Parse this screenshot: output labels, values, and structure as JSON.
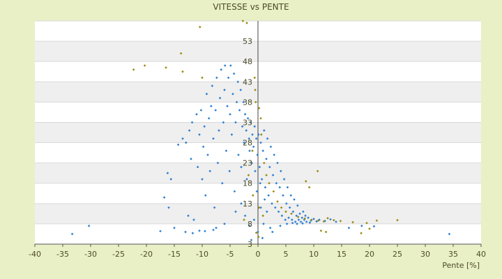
{
  "chart_data": {
    "type": "scatter",
    "title": "VITESSE vs PENTE",
    "xlabel": "Pente [%]",
    "ylabel": "",
    "xlim": [
      -40,
      40
    ],
    "ylim": [
      3,
      58
    ],
    "x_ticks": [
      -40,
      -35,
      -30,
      -25,
      -20,
      -15,
      -10,
      -5,
      0,
      5,
      10,
      15,
      20,
      25,
      30,
      35,
      40
    ],
    "y_ticks": [
      3,
      8,
      13,
      18,
      23,
      28,
      33,
      38,
      43,
      48,
      53
    ],
    "y_tick_labels_shown": [
      "3",
      "8",
      "13",
      "18",
      "23",
      "28",
      "33",
      "38",
      "43",
      "48",
      "53"
    ],
    "grid": "horizontal alternating bands",
    "legend": "none",
    "series": [
      {
        "color": "#2e7fd2",
        "marker": "diamond",
        "points": [
          [
            -33.3,
            5.5
          ],
          [
            -30.3,
            7.5
          ],
          [
            -17.5,
            6.2
          ],
          [
            -16.8,
            14.5
          ],
          [
            -16.2,
            20.5
          ],
          [
            -16,
            12
          ],
          [
            -15.6,
            19
          ],
          [
            -14.3,
            27.5
          ],
          [
            -13.5,
            29
          ],
          [
            -12.9,
            28
          ],
          [
            -12.5,
            10
          ],
          [
            -12.3,
            31
          ],
          [
            -12,
            24
          ],
          [
            -11.8,
            33
          ],
          [
            -11.5,
            9
          ],
          [
            -11,
            35
          ],
          [
            -10.8,
            22
          ],
          [
            -10.5,
            30
          ],
          [
            -10.2,
            36
          ],
          [
            -10,
            19
          ],
          [
            -9.8,
            27
          ],
          [
            -9.6,
            32
          ],
          [
            -9.4,
            15
          ],
          [
            -9.2,
            40
          ],
          [
            -9,
            25
          ],
          [
            -8.8,
            34
          ],
          [
            -8.6,
            21
          ],
          [
            -8.4,
            37
          ],
          [
            -8.2,
            42
          ],
          [
            -8,
            29
          ],
          [
            -7.8,
            12
          ],
          [
            -7.6,
            36
          ],
          [
            -7.4,
            44
          ],
          [
            -7.2,
            23
          ],
          [
            -7,
            31
          ],
          [
            -6.8,
            39
          ],
          [
            -6.6,
            46
          ],
          [
            -6.4,
            18
          ],
          [
            -6.2,
            33
          ],
          [
            -6,
            41
          ],
          [
            -5.9,
            47
          ],
          [
            -5.7,
            26
          ],
          [
            -5.5,
            37
          ],
          [
            -5.3,
            44
          ],
          [
            -5.1,
            21
          ],
          [
            -5,
            35
          ],
          [
            -4.9,
            47
          ],
          [
            -4.7,
            30
          ],
          [
            -4.5,
            40
          ],
          [
            -4.3,
            45
          ],
          [
            -4.2,
            16
          ],
          [
            -4,
            33
          ],
          [
            -3.8,
            38
          ],
          [
            -3.6,
            43
          ],
          [
            -3.5,
            25
          ],
          [
            -3.3,
            36
          ],
          [
            -3.1,
            41
          ],
          [
            -3,
            22
          ],
          [
            -2.8,
            32
          ],
          [
            -2.6,
            38
          ],
          [
            -2.5,
            28
          ],
          [
            -2.3,
            35
          ],
          [
            -2.1,
            31
          ],
          [
            -2,
            19
          ],
          [
            -1.8,
            34
          ],
          [
            -1.6,
            29
          ],
          [
            -1.5,
            26
          ],
          [
            -1.3,
            33
          ],
          [
            -1.1,
            23
          ],
          [
            -1,
            30
          ],
          [
            -0.8,
            27
          ],
          [
            -0.6,
            32
          ],
          [
            -0.5,
            21
          ],
          [
            -0.3,
            29
          ],
          [
            -0.1,
            25
          ],
          [
            0.1,
            30
          ],
          [
            0.3,
            22
          ],
          [
            0.5,
            28
          ],
          [
            0.7,
            19
          ],
          [
            0.9,
            26
          ],
          [
            1.1,
            31
          ],
          [
            1.3,
            17
          ],
          [
            1.5,
            24
          ],
          [
            1.7,
            29
          ],
          [
            1.9,
            15
          ],
          [
            2.1,
            22
          ],
          [
            2.3,
            27
          ],
          [
            2.5,
            13
          ],
          [
            2.7,
            20
          ],
          [
            2.9,
            25
          ],
          [
            3.1,
            12
          ],
          [
            3.3,
            18
          ],
          [
            3.5,
            23
          ],
          [
            3.7,
            11
          ],
          [
            3.9,
            17
          ],
          [
            4.1,
            21
          ],
          [
            4.3,
            10
          ],
          [
            4.5,
            15
          ],
          [
            4.7,
            19
          ],
          [
            4.9,
            9
          ],
          [
            5.1,
            13
          ],
          [
            5.3,
            17
          ],
          [
            5.5,
            9.5
          ],
          [
            5.7,
            12
          ],
          [
            5.9,
            15
          ],
          [
            6.1,
            9
          ],
          [
            6.3,
            11
          ],
          [
            6.5,
            14
          ],
          [
            6.7,
            8.5
          ],
          [
            6.9,
            10
          ],
          [
            7.1,
            12.5
          ],
          [
            7.3,
            9
          ],
          [
            7.5,
            10.5
          ],
          [
            7.7,
            8.5
          ],
          [
            7.9,
            9.5
          ],
          [
            8.1,
            11
          ],
          [
            8.3,
            9
          ],
          [
            8.5,
            10
          ],
          [
            8.7,
            8.5
          ],
          [
            9,
            9.5
          ],
          [
            9.5,
            8.8
          ],
          [
            10,
            9.2
          ],
          [
            10.5,
            8.6
          ],
          [
            11,
            9
          ],
          [
            12,
            8.7
          ],
          [
            13,
            9.1
          ],
          [
            14,
            8.5
          ],
          [
            16.3,
            7
          ],
          [
            18.6,
            7.5
          ],
          [
            20.8,
            7.4
          ],
          [
            -2.3,
            10
          ],
          [
            -1.5,
            7.5
          ],
          [
            -0.7,
            9
          ],
          [
            0,
            6
          ],
          [
            0.5,
            12
          ],
          [
            1,
            8
          ],
          [
            1.6,
            11
          ],
          [
            2.2,
            7
          ],
          [
            -3,
            13
          ],
          [
            -4,
            11
          ],
          [
            -6,
            8
          ],
          [
            -7.5,
            7
          ],
          [
            -8,
            6.5
          ],
          [
            -9.5,
            6.2
          ],
          [
            -10.5,
            6.3
          ],
          [
            -11.7,
            5.7
          ],
          [
            -13,
            6
          ],
          [
            -15,
            7
          ],
          [
            -1.2,
            4
          ],
          [
            0.8,
            4.5
          ],
          [
            2.6,
            6
          ],
          [
            4,
            7.5
          ],
          [
            5.2,
            8
          ],
          [
            6.2,
            8.2
          ],
          [
            7,
            8
          ],
          [
            8,
            8.1
          ],
          [
            9.3,
            8.3
          ],
          [
            -0.2,
            16
          ],
          [
            0.4,
            18
          ],
          [
            1.2,
            14
          ],
          [
            34.3,
            5.5
          ]
        ]
      },
      {
        "color": "#9a8a10",
        "marker": "diamond",
        "points": [
          [
            -22.3,
            46
          ],
          [
            -20.3,
            47
          ],
          [
            -16.5,
            46.5
          ],
          [
            -13.8,
            50
          ],
          [
            -13.5,
            45.5
          ],
          [
            -10.4,
            56.5
          ],
          [
            -10,
            44
          ],
          [
            -2.7,
            58
          ],
          [
            -2,
            57.5
          ],
          [
            -0.6,
            44
          ],
          [
            -0.4,
            38
          ],
          [
            0.2,
            36.5
          ],
          [
            0.5,
            34
          ],
          [
            -0.5,
            41
          ],
          [
            0.6,
            30
          ],
          [
            -1,
            26
          ],
          [
            1.1,
            23
          ],
          [
            1.5,
            20
          ],
          [
            2,
            18
          ],
          [
            2.8,
            16
          ],
          [
            3.5,
            13.5
          ],
          [
            4.2,
            12
          ],
          [
            5,
            11
          ],
          [
            6,
            10.5
          ],
          [
            7.2,
            9.7
          ],
          [
            8.4,
            9.3
          ],
          [
            9.6,
            9
          ],
          [
            10.8,
            8.8
          ],
          [
            11.8,
            8.6
          ],
          [
            12.5,
            9.4
          ],
          [
            13.6,
            8.9
          ],
          [
            14.8,
            8.7
          ],
          [
            17,
            8.4
          ],
          [
            19.5,
            8.2
          ],
          [
            21.3,
            8.8
          ],
          [
            25,
            8.9
          ],
          [
            18.5,
            5.7
          ],
          [
            20,
            6.8
          ],
          [
            11.3,
            6.3
          ],
          [
            12.2,
            6
          ],
          [
            -1.7,
            20
          ],
          [
            -0.9,
            15
          ],
          [
            0.2,
            12
          ],
          [
            0.9,
            10
          ],
          [
            -2.5,
            9
          ],
          [
            -0.3,
            5.8
          ],
          [
            0.1,
            4.8
          ],
          [
            10.7,
            21
          ],
          [
            9.2,
            17
          ],
          [
            8.6,
            18.5
          ]
        ]
      }
    ]
  }
}
